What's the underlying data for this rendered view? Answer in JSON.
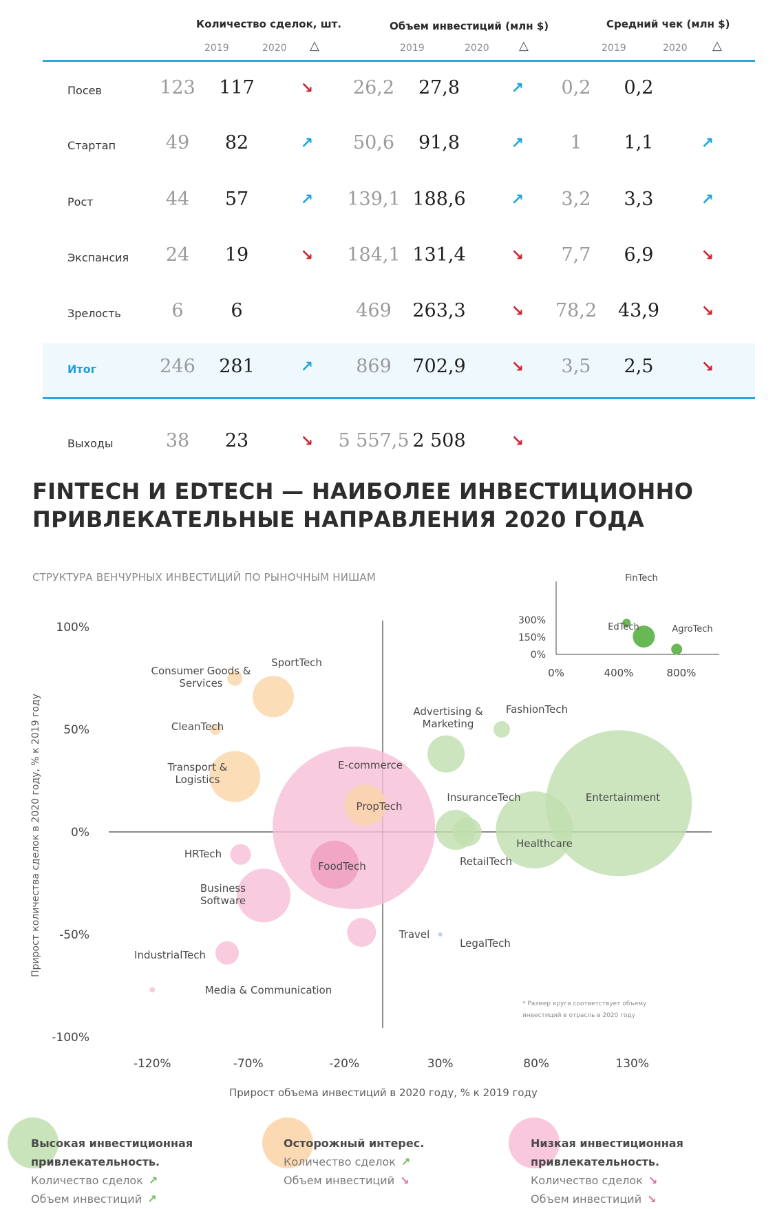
{
  "table": {
    "headers": {
      "deals": "Количество сделок, шт.",
      "invest": "Объем инвестиций (млн $)",
      "avg": "Средний чек (млн $)"
    },
    "year_a": "2019",
    "year_b": "2020",
    "delta": "△",
    "rows": [
      {
        "label": "Посев",
        "d19": "123",
        "d20": "117",
        "d_arrow": "↘",
        "d_dir": "down",
        "i19": "26,2",
        "i20": "27,8",
        "i_arrow": "↗",
        "i_dir": "up",
        "a19": "0,2",
        "a20": "0,2",
        "a_arrow": "",
        "a_dir": ""
      },
      {
        "label": "Стартап",
        "d19": "49",
        "d20": "82",
        "d_arrow": "↗",
        "d_dir": "up",
        "i19": "50,6",
        "i20": "91,8",
        "i_arrow": "↗",
        "i_dir": "up",
        "a19": "1",
        "a20": "1,1",
        "a_arrow": "↗",
        "a_dir": "up"
      },
      {
        "label": "Рост",
        "d19": "44",
        "d20": "57",
        "d_arrow": "↗",
        "d_dir": "up",
        "i19": "139,1",
        "i20": "188,6",
        "i_arrow": "↗",
        "i_dir": "up",
        "a19": "3,2",
        "a20": "3,3",
        "a_arrow": "↗",
        "a_dir": "up"
      },
      {
        "label": "Экспансия",
        "d19": "24",
        "d20": "19",
        "d_arrow": "↘",
        "d_dir": "down",
        "i19": "184,1",
        "i20": "131,4",
        "i_arrow": "↘",
        "i_dir": "down",
        "a19": "7,7",
        "a20": "6,9",
        "a_arrow": "↘",
        "a_dir": "down"
      },
      {
        "label": "Зрелость",
        "d19": "6",
        "d20": "6",
        "d_arrow": "",
        "d_dir": "",
        "i19": "469",
        "i20": "263,3",
        "i_arrow": "↘",
        "i_dir": "down",
        "a19": "78,2",
        "a20": "43,9",
        "a_arrow": "↘",
        "a_dir": "down"
      }
    ],
    "total": {
      "label": "Итог",
      "d19": "246",
      "d20": "281",
      "d_arrow": "↗",
      "d_dir": "up",
      "i19": "869",
      "i20": "702,9",
      "i_arrow": "↘",
      "i_dir": "down",
      "a19": "3,5",
      "a20": "2,5",
      "a_arrow": "↘",
      "a_dir": "down"
    },
    "exits": {
      "label": "Выходы",
      "d19": "38",
      "d20": "23",
      "d_arrow": "↘",
      "d_dir": "down",
      "i19": "5 557,5",
      "i20": "2 508",
      "i_arrow": "↘",
      "i_dir": "down"
    }
  },
  "section": {
    "title_line1": "FINTECH И EDTECH — НАИБОЛЕЕ ИНВЕСТИЦИОННО",
    "title_line2": "ПРИВЛЕКАТЕЛЬНЫЕ НАПРАВЛЕНИЯ 2020 ГОДА",
    "subtitle": "СТРУКТУРА ВЕНЧУРНЫХ ИНВЕСТИЦИЙ ПО РЫНОЧНЫМ НИШАМ"
  },
  "colors": {
    "green": "#bfdfae",
    "orange": "#fad4a6",
    "pink": "#f8bed6",
    "pink_dark": "#ec9abb",
    "blue_legal": "#a9c7ec",
    "inset_green": "#6ab755",
    "accent_blue": "#29a8de",
    "up": "#1aa5e0",
    "down": "#d0212e"
  },
  "chart_data": [
    {
      "type": "scatter",
      "variant": "bubble",
      "xlabel": "Прирост объема инвестиций в 2020 году, % к 2019 году",
      "ylabel": "Прирост количества сделок в 2020 году, % к 2019 году",
      "xlim": [
        -150,
        160
      ],
      "ylim": [
        -100,
        100
      ],
      "x_ticks": [
        "-120%",
        "-70%",
        "-20%",
        "30%",
        "80%",
        "130%"
      ],
      "x_tick_values": [
        -120,
        -70,
        -20,
        30,
        80,
        130
      ],
      "y_ticks": [
        "100%",
        "50%",
        "0%",
        "-50%",
        "-100%"
      ],
      "y_tick_values": [
        100,
        50,
        0,
        -50,
        -100
      ],
      "note_line1": "* Размер круга соответствует объему",
      "note_line2": "инвестиций в отрасль в 2020 году",
      "points": [
        {
          "name": "SportTech",
          "x": -57,
          "y": 66,
          "r": 30,
          "group": "orange"
        },
        {
          "name": "Consumer Goods & Services",
          "x": -77,
          "y": 75,
          "r": 11,
          "group": "orange"
        },
        {
          "name": "CleanTech",
          "x": -87,
          "y": 50,
          "r": 8,
          "group": "orange"
        },
        {
          "name": "Transport & Logistics",
          "x": -77,
          "y": 27,
          "r": 37,
          "group": "orange"
        },
        {
          "name": "PropTech",
          "x": -9,
          "y": 13,
          "r": 30,
          "group": "orange"
        },
        {
          "name": "E-commerce",
          "x": -15,
          "y": 2,
          "r": 118,
          "group": "pink"
        },
        {
          "name": "FoodTech",
          "x": -25,
          "y": -16,
          "r": 35,
          "group": "pink_dark"
        },
        {
          "name": "HRTech",
          "x": -74,
          "y": -11,
          "r": 15,
          "group": "pink"
        },
        {
          "name": "Business Software",
          "x": -62,
          "y": -31,
          "r": 39,
          "group": "pink"
        },
        {
          "name": "Travel",
          "x": -11,
          "y": -49,
          "r": 21,
          "group": "pink"
        },
        {
          "name": "IndustrialTech",
          "x": -81,
          "y": -59,
          "r": 17,
          "group": "pink"
        },
        {
          "name": "Media & Communication",
          "x": -120,
          "y": -77,
          "r": 4,
          "group": "pink"
        },
        {
          "name": "LegalTech",
          "x": 30,
          "y": -50,
          "r": 3,
          "group": "blue_legal"
        },
        {
          "name": "Advertising & Marketing",
          "x": 33,
          "y": 38,
          "r": 27,
          "group": "green"
        },
        {
          "name": "FashionTech",
          "x": 62,
          "y": 50,
          "r": 12,
          "group": "green"
        },
        {
          "name": "InsuranceTech",
          "x": 44,
          "y": 0,
          "r": 21,
          "group": "green"
        },
        {
          "name": "RetailTech",
          "x": 38,
          "y": 1,
          "r": 29,
          "group": "green"
        },
        {
          "name": "Healthcare",
          "x": 79,
          "y": 1,
          "r": 56,
          "group": "green"
        },
        {
          "name": "Entertainment",
          "x": 123,
          "y": 14,
          "r": 106,
          "group": "green"
        }
      ]
    },
    {
      "type": "scatter",
      "variant": "bubble-inset",
      "x_ticks": [
        "0%",
        "400%",
        "800%"
      ],
      "x_tick_values": [
        0,
        400,
        800
      ],
      "y_ticks": [
        "300%",
        "150%",
        "0%"
      ],
      "y_tick_values": [
        300,
        150,
        0
      ],
      "xlim": [
        0,
        800
      ],
      "ylim": [
        0,
        300
      ],
      "points": [
        {
          "name": "FinTech",
          "x": 450,
          "y": 275,
          "r": 6
        },
        {
          "name": "EdTech",
          "x": 560,
          "y": 155,
          "r": 16
        },
        {
          "name": "AgroTech",
          "x": 770,
          "y": 45,
          "r": 8
        }
      ]
    }
  ],
  "legend": [
    {
      "title_line1": "Высокая инвестиционная",
      "title_line2": "привлекательность.",
      "line1": "Количество сделок",
      "arrow1": "↗",
      "dir1": "up",
      "line2": "Объем инвестиций",
      "arrow2": "↗",
      "dir2": "up",
      "color": "#bfdfae"
    },
    {
      "title_line1": "Осторожный интерес.",
      "title_line2": "",
      "line1": "Количество сделок",
      "arrow1": "↗",
      "dir1": "up",
      "line2": "Объем инвестиций",
      "arrow2": "↘",
      "dir2": "down",
      "color": "#fad4a6"
    },
    {
      "title_line1": "Низкая инвестиционная",
      "title_line2": "привлекательность.",
      "line1": "Количество сделок",
      "arrow1": "↘",
      "dir1": "down",
      "line2": "Объем инвестиций",
      "arrow2": "↘",
      "dir2": "down",
      "color": "#f8bed6"
    }
  ]
}
